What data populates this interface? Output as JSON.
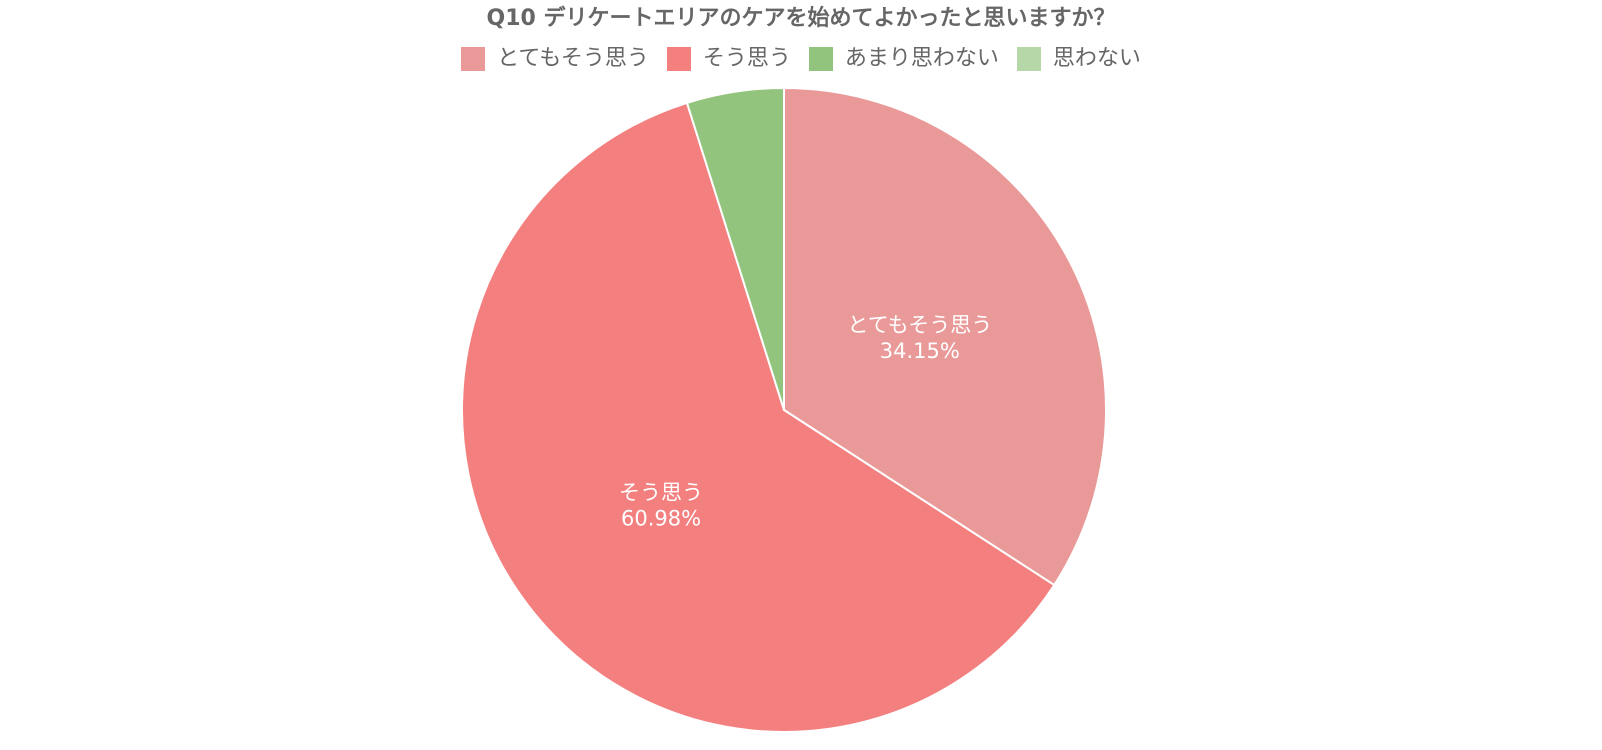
{
  "chart_data": {
    "type": "pie",
    "title": "Q10 デリケートエリアのケアを始めてよかったと思いますか？",
    "legend_position": "top",
    "slices": [
      {
        "name": "とてもそう思う",
        "value": 34.15,
        "label": "34.15%",
        "color": "#EA9999"
      },
      {
        "name": "そう思う",
        "value": 60.98,
        "label": "60.98%",
        "color": "#F47F7F"
      },
      {
        "name": "あまり思わない",
        "value": 4.87,
        "label": "",
        "color": "#93C47D"
      },
      {
        "name": "思わない",
        "value": 0,
        "label": "",
        "color": "#B6D7A8"
      }
    ]
  }
}
